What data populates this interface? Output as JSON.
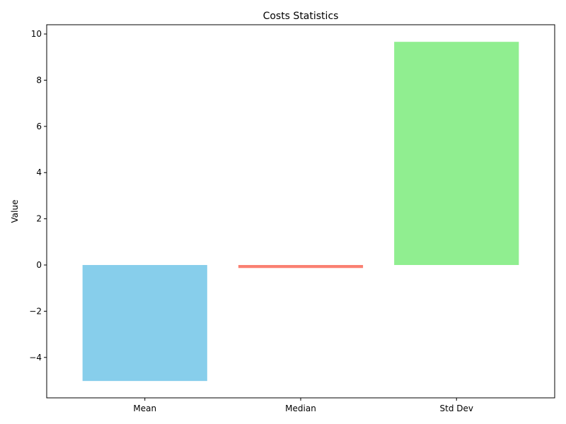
{
  "chart_data": {
    "type": "bar",
    "title": "Costs Statistics",
    "xlabel": "",
    "ylabel": "Value",
    "categories": [
      "Mean",
      "Median",
      "Std Dev"
    ],
    "values": [
      -5.02,
      -0.13,
      9.66
    ],
    "colors": [
      "#87ceeb",
      "#fa8072",
      "#90ee90"
    ],
    "ylim": [
      -5.75,
      10.4
    ],
    "yticks": [
      -4,
      -2,
      0,
      2,
      4,
      6,
      8,
      10
    ],
    "ytick_labels": [
      "−4",
      "−2",
      "0",
      "2",
      "4",
      "6",
      "8",
      "10"
    ],
    "grid": false,
    "legend": "none"
  }
}
